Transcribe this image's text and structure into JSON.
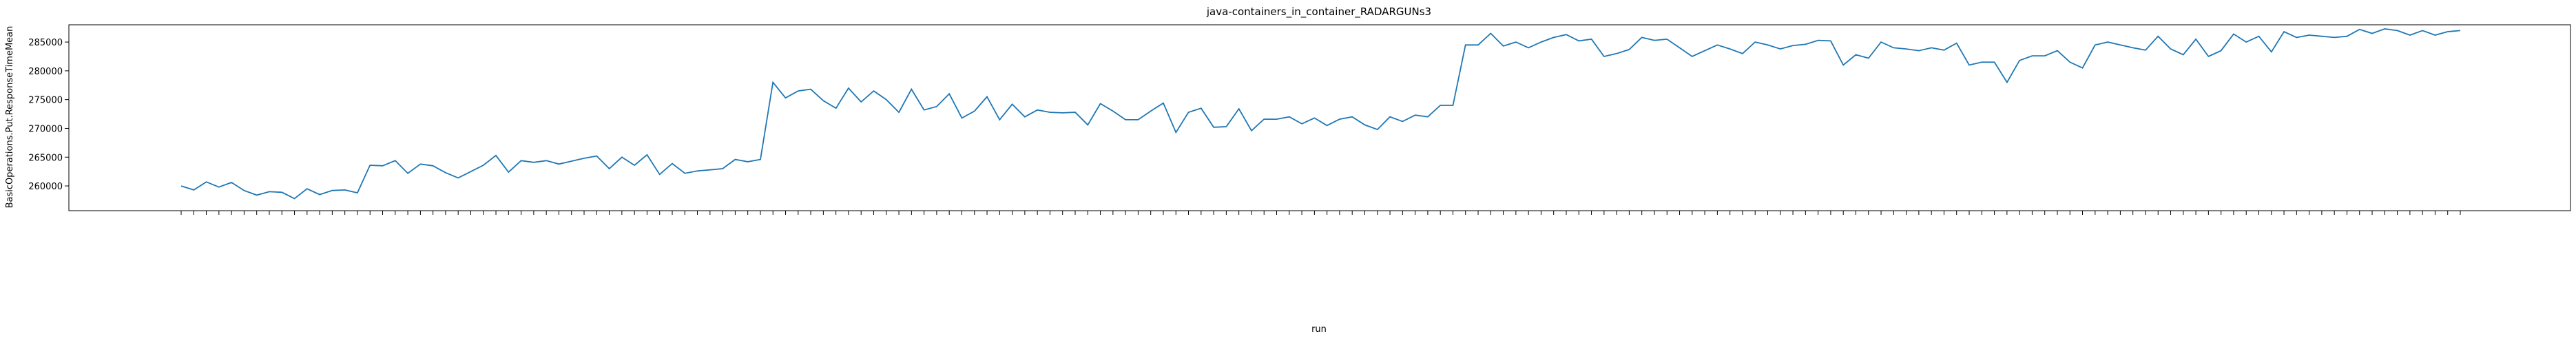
{
  "chart_data": {
    "type": "line",
    "title": "java-containers_in_container_RADARGUNs3",
    "xlabel": "run",
    "ylabel": "BasicOperations.Put.ResponseTimeMean",
    "categories": [
      null,
      null,
      null,
      null,
      null,
      null,
      null,
      null,
      null,
      null,
      null,
      null,
      null,
      null,
      null,
      null,
      null,
      null,
      null,
      null,
      null,
      null,
      null,
      null,
      null,
      null,
      null,
      null,
      null,
      null,
      null,
      null,
      null,
      null,
      null,
      null,
      null,
      null,
      null,
      null,
      null,
      null,
      null,
      null,
      null,
      null,
      null,
      null,
      null,
      null,
      null,
      null,
      null,
      null,
      null,
      null,
      null,
      null,
      null,
      null,
      null,
      null,
      null,
      null,
      null,
      null,
      null,
      null,
      null,
      null,
      null,
      null,
      null,
      null,
      null,
      null,
      null,
      null,
      null,
      null,
      null,
      null,
      null,
      null,
      null,
      null,
      null,
      null,
      null,
      null,
      null,
      null,
      null,
      null,
      null,
      null,
      null,
      null,
      null,
      null,
      null,
      null,
      null,
      null,
      null,
      null,
      null,
      null,
      null,
      null,
      null,
      null,
      null,
      null,
      null,
      null,
      null,
      null,
      null,
      null,
      null,
      null,
      null,
      null,
      null,
      null,
      null,
      null,
      null,
      null,
      null,
      null,
      null,
      null,
      null,
      null,
      null,
      null,
      null,
      null,
      null,
      null,
      null,
      null,
      null,
      null,
      null,
      null,
      null,
      null,
      null,
      null,
      null,
      null,
      null,
      null,
      null,
      null,
      null,
      null,
      null,
      null,
      null,
      null,
      null,
      null,
      null,
      null,
      null,
      null,
      null,
      null,
      null,
      null,
      null,
      null,
      null,
      null,
      null,
      null,
      null,
      null
    ],
    "series": [
      {
        "name": "BasicOperations.Put.ResponseTimeMean",
        "color": "#1f77b4",
        "values": [
          260000,
          259300,
          260700,
          259800,
          260600,
          259200,
          258400,
          259000,
          258900,
          257800,
          259500,
          258500,
          259200,
          259300,
          258800,
          263600,
          263500,
          264400,
          262200,
          263800,
          263500,
          262300,
          261400,
          262500,
          263600,
          265300,
          262400,
          264400,
          264100,
          264400,
          263800,
          264300,
          264800,
          265200,
          263000,
          265000,
          263600,
          265400,
          262000,
          263900,
          262200,
          262600,
          262800,
          263000,
          264600,
          264200,
          264600,
          278000,
          275300,
          276500,
          276800,
          274800,
          273500,
          277000,
          274600,
          276500,
          275000,
          272800,
          276800,
          273200,
          273800,
          276000,
          271800,
          273000,
          275500,
          271500,
          274200,
          272000,
          273200,
          272800,
          272700,
          272800,
          270600,
          274300,
          273000,
          271500,
          271500,
          273000,
          274400,
          269300,
          272800,
          273500,
          270200,
          270300,
          273400,
          269600,
          271600,
          271600,
          272000,
          270800,
          271800,
          270500,
          271600,
          272000,
          270600,
          269800,
          272000,
          271200,
          272300,
          272000,
          274000,
          274000,
          284500,
          284500,
          286500,
          284300,
          285000,
          284000,
          285000,
          285800,
          286300,
          285200,
          285500,
          282500,
          283000,
          283700,
          285800,
          285300,
          285500,
          284000,
          282500,
          283500,
          284500,
          283800,
          283000,
          285000,
          284500,
          283800,
          284400,
          284600,
          285300,
          285200,
          281000,
          282800,
          282200,
          285000,
          284000,
          283800,
          283500,
          284000,
          283600,
          284800,
          281000,
          281500,
          281500,
          278000,
          281800,
          282600,
          282600,
          283500,
          281500,
          280500,
          284500,
          285000,
          284500,
          284000,
          283600,
          286000,
          283800,
          282800,
          285500,
          282500,
          283500,
          286400,
          285000,
          286000,
          283300,
          286800,
          285800,
          286200,
          286000,
          285800,
          286000,
          287200,
          286500,
          287300,
          287000,
          286200,
          287000,
          286200,
          286800,
          287000
        ]
      }
    ],
    "ylim": [
      255700,
      288000
    ],
    "yticks": [
      260000,
      265000,
      270000,
      275000,
      280000,
      285000
    ],
    "grid": false
  }
}
